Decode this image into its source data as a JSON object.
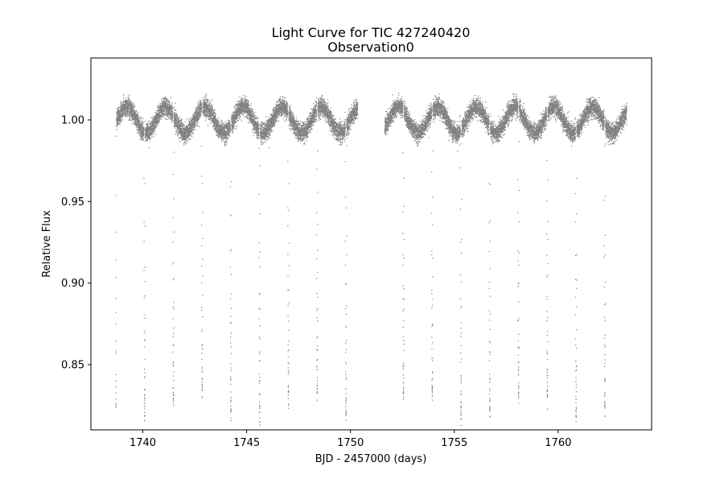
{
  "chart_data": {
    "type": "scatter",
    "title": "Light Curve for TIC 427240420",
    "subtitle": "Observation0",
    "xlabel": "BJD - 2457000 (days)",
    "ylabel": "Relative Flux",
    "xlim": [
      1737.5,
      1764.5
    ],
    "ylim": [
      0.81,
      1.038
    ],
    "xticks": [
      1740,
      1745,
      1750,
      1755,
      1760
    ],
    "xtick_labels": [
      "1740",
      "1745",
      "1750",
      "1755",
      "1760"
    ],
    "yticks": [
      0.85,
      0.9,
      0.95,
      1.0
    ],
    "ytick_labels": [
      "0.85",
      "0.90",
      "0.95",
      "1.00"
    ],
    "grid": false,
    "marker_color": "#808080",
    "segments": [
      [
        1738.7,
        1750.35
      ],
      [
        1751.65,
        1763.3
      ]
    ],
    "variability": {
      "baseline": 1.0,
      "amplitude": 0.008,
      "period_days": 1.87,
      "phase_offset": -0.2
    },
    "eclipses": {
      "first_epoch": 1738.7,
      "period_days": 1.3853,
      "depth": 0.175,
      "count": 19
    },
    "series": [
      {
        "name": "",
        "note_points": "points sampled every ~2 minutes within each segment",
        "cadence_days": 0.00139
      }
    ]
  }
}
